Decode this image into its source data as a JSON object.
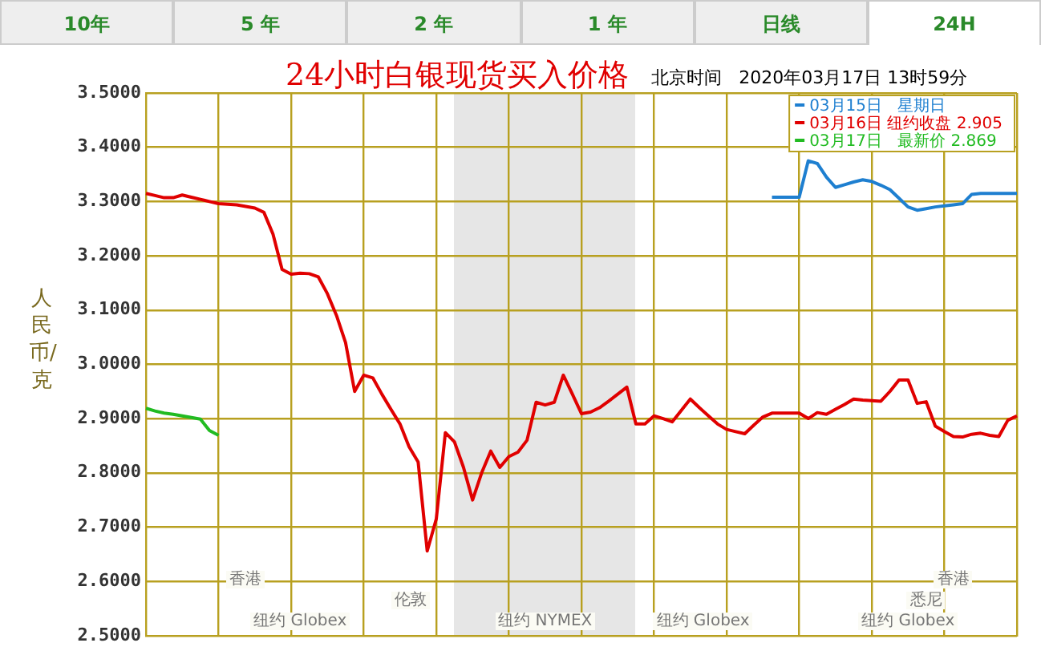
{
  "chart_data": {
    "type": "line",
    "title": "24小时白银现货买入价格",
    "subtitle": "北京时间   2020年03月17日 13时59分",
    "ylabel": "人民币/克",
    "categories": [
      null,
      null,
      null,
      null,
      null,
      null,
      null,
      null,
      null,
      null,
      null,
      null,
      null,
      null,
      null,
      null,
      null,
      null,
      null,
      null,
      null,
      null,
      null,
      null,
      null,
      null,
      null,
      null,
      null,
      null,
      null,
      null,
      null,
      null,
      null,
      null,
      null,
      null,
      null,
      null,
      null,
      null,
      null,
      null,
      null,
      null,
      null,
      null,
      null,
      null,
      null,
      null,
      null,
      null,
      null,
      null,
      null,
      null,
      null,
      null,
      null,
      null,
      null,
      null,
      null,
      null,
      null,
      null,
      null,
      null,
      null,
      null,
      null,
      null,
      null,
      null,
      null,
      null,
      null,
      null,
      null,
      null,
      null,
      null,
      null,
      null,
      null,
      null,
      null,
      null,
      null,
      null,
      null,
      null,
      null,
      null,
      null
    ],
    "ylim": [
      2.5,
      3.5
    ],
    "yticks": [
      {
        "value": 2.5,
        "label": "2.5000"
      },
      {
        "value": 2.6,
        "label": "2.6000"
      },
      {
        "value": 2.7,
        "label": "2.7000"
      },
      {
        "value": 2.8,
        "label": "2.8000"
      },
      {
        "value": 2.9,
        "label": "2.9000"
      },
      {
        "value": 3.0,
        "label": "3.0000"
      },
      {
        "value": 3.1,
        "label": "3.1000"
      },
      {
        "value": 3.2,
        "label": "3.2000"
      },
      {
        "value": 3.3,
        "label": "3.3000"
      },
      {
        "value": 3.4,
        "label": "3.4000"
      },
      {
        "value": 3.5,
        "label": "3.5000"
      }
    ],
    "tick_labels": "y",
    "grid": true,
    "legend": "top right",
    "marker": "none",
    "line_style": "solid",
    "series": [
      {
        "name": "03月15日   星期日",
        "color": "#1e7fd0",
        "values": [
          null,
          null,
          null,
          null,
          null,
          null,
          null,
          null,
          null,
          null,
          null,
          null,
          null,
          null,
          null,
          null,
          null,
          null,
          null,
          null,
          null,
          null,
          null,
          null,
          null,
          null,
          null,
          null,
          null,
          null,
          null,
          null,
          null,
          null,
          null,
          null,
          null,
          null,
          null,
          null,
          null,
          null,
          null,
          null,
          null,
          null,
          null,
          null,
          null,
          null,
          null,
          null,
          null,
          null,
          null,
          null,
          null,
          null,
          null,
          null,
          null,
          null,
          null,
          null,
          null,
          null,
          null,
          null,
          null,
          3.308,
          3.308,
          3.308,
          3.308,
          3.375,
          3.37,
          3.345,
          3.326,
          3.331,
          3.336,
          3.34,
          3.337,
          3.33,
          3.322,
          3.306,
          3.29,
          3.284,
          3.287,
          3.29,
          3.292,
          3.294,
          3.296,
          3.313,
          3.315,
          3.315,
          3.315,
          3.315,
          3.315
        ]
      },
      {
        "name": "03月16日 纽约收盘 2.905",
        "color": "#e00000",
        "values": [
          3.315,
          3.311,
          3.307,
          3.307,
          3.312,
          3.308,
          3.304,
          3.3,
          3.296,
          3.295,
          3.294,
          3.291,
          3.288,
          3.28,
          3.24,
          3.175,
          3.166,
          3.168,
          3.167,
          3.161,
          3.13,
          3.09,
          3.04,
          2.95,
          2.98,
          2.975,
          2.945,
          2.917,
          2.89,
          2.848,
          2.82,
          2.656,
          2.715,
          2.874,
          2.857,
          2.81,
          2.75,
          2.8,
          2.84,
          2.81,
          2.83,
          2.838,
          2.86,
          2.93,
          2.925,
          2.93,
          2.98,
          2.945,
          2.909,
          2.912,
          2.92,
          2.932,
          2.945,
          2.958,
          2.89,
          2.89,
          2.905,
          2.9,
          2.894,
          2.915,
          2.936,
          2.92,
          2.905,
          2.89,
          2.88,
          2.876,
          2.872,
          2.888,
          2.903,
          2.91,
          2.91,
          2.91,
          2.91,
          2.9,
          2.911,
          2.908,
          2.917,
          2.926,
          2.936,
          2.934,
          2.933,
          2.932,
          2.95,
          2.971,
          2.971,
          2.928,
          2.931,
          2.886,
          2.876,
          2.867,
          2.866,
          2.871,
          2.873,
          2.869,
          2.867,
          2.897,
          2.905
        ]
      },
      {
        "name": "03月17日   最新价 2.869",
        "color": "#22bb22",
        "values": [
          2.919,
          2.914,
          2.91,
          2.908,
          2.905,
          2.902,
          2.899,
          2.878,
          2.869,
          null,
          null,
          null,
          null,
          null,
          null,
          null,
          null,
          null,
          null,
          null,
          null,
          null,
          null,
          null,
          null,
          null,
          null,
          null,
          null,
          null,
          null,
          null,
          null,
          null,
          null,
          null,
          null,
          null,
          null,
          null,
          null,
          null,
          null,
          null,
          null,
          null,
          null,
          null,
          null,
          null,
          null,
          null,
          null,
          null,
          null,
          null,
          null,
          null,
          null,
          null,
          null,
          null,
          null,
          null,
          null,
          null,
          null,
          null,
          null,
          null,
          null,
          null,
          null,
          null,
          null,
          null,
          null,
          null,
          null,
          null,
          null,
          null,
          null,
          null,
          null,
          null,
          null,
          null,
          null,
          null,
          null,
          null,
          null,
          null,
          null,
          null,
          null
        ]
      }
    ],
    "annotations": [
      "10年",
      "5 年",
      "2 年",
      "1 年",
      "日线",
      "24H",
      "香港",
      "伦敦",
      "纽约 Globex",
      "纽约 NYMEX",
      "纽约 Globex",
      "香港",
      "悉尼",
      "纽约 Globex"
    ]
  }
}
